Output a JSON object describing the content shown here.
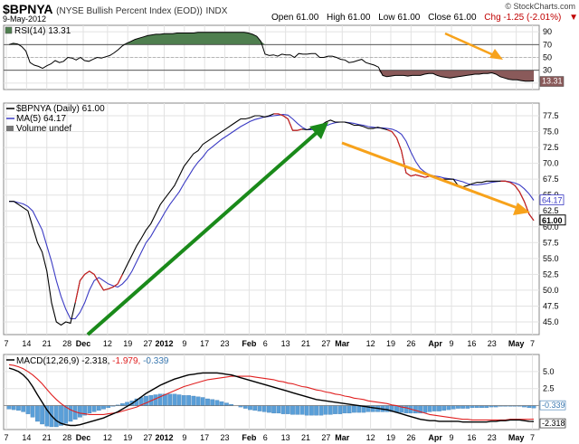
{
  "header": {
    "symbol": "$BPNYA",
    "name": "(NYSE Bullish Percent Index (EOD))",
    "exchange": "INDX",
    "date": "9-May-2012",
    "brand": "© StockCharts.com",
    "open": "Open 61.00",
    "high": "High 61.00",
    "low": "Low 61.00",
    "close": "Close 61.00",
    "chg": "Chg -1.25 (-2.01%)",
    "chg_arrow": "▼"
  },
  "colors": {
    "price": "#000000",
    "ma": "#3b3bc4",
    "rsi_fill_high": "#4f7f4f",
    "rsi_fill_low": "#8a5a5a",
    "macd": "#000000",
    "signal": "#e02020",
    "hist": "#5a9fd8",
    "arrow_green": "#1a8a1a",
    "arrow_orange": "#f7a21b"
  },
  "chart_data": [
    {
      "type": "line",
      "panel": "RSI",
      "legend": "RSI(14) 13.31",
      "last_label": "13.31",
      "ylim": [
        0,
        100
      ],
      "yticks": [
        "90",
        "70",
        "50",
        "30",
        "10"
      ],
      "ytick_values": [
        90,
        70,
        50,
        30,
        10
      ],
      "reference_lines": [
        70,
        30
      ],
      "x": [
        0,
        1,
        2,
        3,
        4,
        5,
        6,
        7,
        8,
        9,
        10,
        11,
        12,
        13,
        14,
        15,
        16,
        17,
        18,
        19,
        20,
        21,
        22,
        23,
        24,
        25,
        26,
        27,
        28,
        29,
        30,
        31,
        32,
        33,
        34,
        35,
        36,
        37,
        38,
        39,
        40,
        41,
        42,
        43,
        44,
        45,
        46,
        47,
        48,
        49,
        50,
        51,
        52,
        53,
        54,
        55,
        56,
        57,
        58,
        59,
        60,
        61,
        62,
        63,
        64,
        65,
        66,
        67,
        68,
        69,
        70,
        71,
        72,
        73,
        74,
        75,
        76,
        77,
        78,
        79,
        80,
        81,
        82,
        83,
        84,
        85,
        86,
        87,
        88,
        89,
        90,
        91,
        92,
        93,
        94,
        95,
        96,
        97,
        98,
        99,
        100,
        101,
        102,
        103,
        104,
        105,
        106,
        107,
        108,
        109,
        110,
        111,
        112,
        113,
        114,
        115,
        116,
        117,
        118,
        119,
        120,
        121,
        122,
        123,
        124,
        125
      ],
      "values": [
        70,
        72,
        71,
        67,
        60,
        42,
        38,
        36,
        33,
        37,
        40,
        45,
        42,
        44,
        50,
        49,
        46,
        50,
        45,
        44,
        47,
        50,
        49,
        51,
        53,
        57,
        62,
        68,
        72,
        75,
        78,
        80,
        82,
        84,
        85,
        86,
        86,
        87,
        87,
        87,
        88,
        88,
        88,
        88,
        88,
        89,
        89,
        89,
        89,
        89,
        89,
        89,
        89,
        89,
        89,
        89,
        89,
        88,
        86,
        83,
        75,
        55,
        53,
        54,
        52,
        55,
        54,
        54,
        50,
        56,
        55,
        55,
        56,
        56,
        50,
        50,
        52,
        52,
        50,
        47,
        46,
        42,
        43,
        45,
        47,
        42,
        40,
        38,
        35,
        22,
        20,
        21,
        22,
        22,
        22,
        21,
        22,
        22,
        22,
        24,
        25,
        25,
        22,
        20,
        19,
        18,
        19,
        20,
        21,
        22,
        23,
        24,
        24,
        25,
        25,
        26,
        24,
        20,
        18,
        16,
        15,
        15,
        14,
        13,
        13,
        13.31
      ]
    },
    {
      "type": "line",
      "panel": "Price",
      "legend_price": "$BPNYA (Daily) 61.00",
      "legend_ma": "MA(5) 64.17",
      "legend_vol": "Volume undef",
      "ylim": [
        43,
        79.5
      ],
      "yticks": [
        "77.5",
        "75.0",
        "72.5",
        "70.0",
        "67.5",
        "65.0",
        "62.5",
        "60.0",
        "57.5",
        "55.0",
        "52.5",
        "50.0",
        "47.5",
        "45.0"
      ],
      "ytick_values": [
        77.5,
        75,
        72.5,
        70,
        67.5,
        65,
        62.5,
        60,
        57.5,
        55,
        52.5,
        50,
        47.5,
        45
      ],
      "last_price_label": "61.00",
      "last_ma_label": "64.17",
      "series": [
        {
          "name": "$BPNYA (Daily) 61.00",
          "values": [
            64,
            64,
            63.5,
            63,
            62.5,
            60,
            57.5,
            56,
            53,
            48,
            45,
            44.5,
            45,
            44.8,
            48,
            51.5,
            52.5,
            53,
            52.5,
            51.2,
            50,
            50.2,
            50.5,
            51,
            52.5,
            54,
            55.5,
            57,
            58.2,
            59.5,
            60.5,
            62,
            63.5,
            64.5,
            65.5,
            66.5,
            68,
            69.5,
            70.5,
            71.5,
            72,
            73,
            73.5,
            74,
            74.5,
            75,
            75.5,
            76,
            76.5,
            77,
            77,
            77.2,
            77.5,
            77.5,
            77.3,
            77.5,
            77.8,
            77.8,
            77.5,
            77,
            75.2,
            75.2,
            75.4,
            75.3,
            75.5,
            75.5,
            76,
            76.5,
            76.8,
            76.5,
            76.5,
            76.5,
            76.3,
            76,
            76,
            75.8,
            75.5,
            75.5,
            75.7,
            75.5,
            75.3,
            75,
            74,
            72,
            68.5,
            68,
            68.2,
            68,
            67.8,
            68,
            68,
            67.5,
            67.5,
            67.5,
            67.5,
            66.5,
            66.3,
            66.5,
            66.8,
            67,
            67,
            67.2,
            67.2,
            67.2,
            67.2,
            67.2,
            67,
            66.5,
            65.5,
            64,
            62,
            61
          ]
        },
        {
          "name": "MA(5) 64.17",
          "values": [
            64,
            64,
            63.8,
            63.6,
            63.2,
            62.5,
            61,
            59.5,
            57,
            54.5,
            51.5,
            49,
            47,
            45.5,
            45.5,
            46.5,
            48,
            50,
            51.5,
            52,
            51.5,
            51,
            50.7,
            50.5,
            51,
            51.8,
            53,
            54.5,
            56,
            57.5,
            58.5,
            59.8,
            61,
            62.3,
            63.5,
            64.5,
            65.5,
            66.8,
            68,
            69.2,
            70.2,
            71,
            72,
            72.6,
            73.2,
            73.8,
            74.3,
            74.8,
            75.3,
            75.8,
            76.2,
            76.6,
            76.9,
            77.1,
            77.3,
            77.4,
            77.5,
            77.6,
            77.7,
            77.6,
            77,
            76.3,
            75.7,
            75.3,
            75.3,
            75.4,
            75.6,
            75.9,
            76.2,
            76.4,
            76.5,
            76.5,
            76.4,
            76.3,
            76.1,
            76,
            75.8,
            75.7,
            75.6,
            75.6,
            75.5,
            75.4,
            75.1,
            74.6,
            73.5,
            71.8,
            70.3,
            69.2,
            68.6,
            68.2,
            68,
            67.9,
            67.7,
            67.6,
            67.5,
            67.3,
            67.1,
            66.8,
            66.6,
            66.6,
            66.7,
            66.8,
            67,
            67.1,
            67.2,
            67.2,
            67.1,
            66.9,
            66.6,
            66,
            65.2,
            64.17
          ]
        }
      ]
    },
    {
      "type": "line",
      "panel": "MACD",
      "legend_prefix": "MACD(12,26,9)",
      "legend_macd": "-2.318",
      "legend_signal": "-1.979",
      "legend_hist": "-0.339",
      "ylim": [
        -3.5,
        7.5
      ],
      "yticks": [
        "5.0",
        "2.5",
        "0.0"
      ],
      "ytick_values": [
        5,
        2.5,
        0
      ],
      "last_hist_label": "-0.339",
      "last_macd_label": "-2.318",
      "series": [
        {
          "name": "MACD",
          "values": [
            5.5,
            5.3,
            5.0,
            4.5,
            3.8,
            2.8,
            1.6,
            0.5,
            -0.6,
            -1.5,
            -2.2,
            -2.6,
            -2.8,
            -2.9,
            -2.9,
            -2.8,
            -2.6,
            -2.4,
            -2.2,
            -2.0,
            -1.8,
            -1.5,
            -1.2,
            -0.9,
            -0.5,
            -0.1,
            0.3,
            0.8,
            1.3,
            1.8,
            2.2,
            2.6,
            3.0,
            3.3,
            3.6,
            3.9,
            4.1,
            4.3,
            4.5,
            4.6,
            4.7,
            4.8,
            4.8,
            4.8,
            4.8,
            4.7,
            4.6,
            4.5,
            4.3,
            4.1,
            3.9,
            3.7,
            3.5,
            3.3,
            3.1,
            2.9,
            2.7,
            2.5,
            2.3,
            2.1,
            1.9,
            1.7,
            1.5,
            1.3,
            1.1,
            0.9,
            0.8,
            0.7,
            0.6,
            0.5,
            0.4,
            0.3,
            0.2,
            0.1,
            0.0,
            -0.1,
            -0.2,
            -0.3,
            -0.4,
            -0.5,
            -0.6,
            -0.8,
            -1.0,
            -1.2,
            -1.4,
            -1.6,
            -1.8,
            -2.0,
            -2.1,
            -2.2,
            -2.2,
            -2.3,
            -2.3,
            -2.3,
            -2.3,
            -2.3,
            -2.4,
            -2.4,
            -2.4,
            -2.4,
            -2.4,
            -2.4,
            -2.3,
            -2.3,
            -2.2,
            -2.2,
            -2.1,
            -2.1,
            -2.1,
            -2.2,
            -2.3,
            -2.318
          ]
        },
        {
          "name": "Signal",
          "values": [
            6.0,
            5.9,
            5.7,
            5.4,
            5.0,
            4.5,
            3.9,
            3.2,
            2.4,
            1.6,
            0.9,
            0.3,
            -0.2,
            -0.6,
            -0.9,
            -1.1,
            -1.2,
            -1.3,
            -1.3,
            -1.3,
            -1.3,
            -1.2,
            -1.1,
            -1.0,
            -0.8,
            -0.6,
            -0.4,
            -0.2,
            0.1,
            0.4,
            0.7,
            1.0,
            1.3,
            1.6,
            1.9,
            2.2,
            2.5,
            2.8,
            3.0,
            3.2,
            3.4,
            3.6,
            3.8,
            3.9,
            4.0,
            4.1,
            4.2,
            4.3,
            4.3,
            4.3,
            4.3,
            4.3,
            4.2,
            4.1,
            4.0,
            3.9,
            3.8,
            3.6,
            3.5,
            3.3,
            3.2,
            3.0,
            2.8,
            2.7,
            2.5,
            2.3,
            2.2,
            2.0,
            1.9,
            1.7,
            1.6,
            1.4,
            1.3,
            1.1,
            1.0,
            0.9,
            0.7,
            0.6,
            0.5,
            0.4,
            0.3,
            0.1,
            0.0,
            -0.2,
            -0.3,
            -0.5,
            -0.7,
            -0.9,
            -1.1,
            -1.3,
            -1.4,
            -1.5,
            -1.6,
            -1.7,
            -1.8,
            -1.9,
            -2.0,
            -2.0,
            -2.1,
            -2.1,
            -2.1,
            -2.1,
            -2.1,
            -2.1,
            -2.1,
            -2.1,
            -2.0,
            -2.0,
            -2.0,
            -2.0,
            -2.0,
            -1.979
          ]
        }
      ],
      "histogram": {
        "name": "Histogram",
        "values": [
          -0.5,
          -0.6,
          -0.7,
          -0.9,
          -1.2,
          -1.7,
          -2.3,
          -2.7,
          -3.0,
          -3.1,
          -3.1,
          -2.9,
          -2.6,
          -2.3,
          -2.0,
          -1.7,
          -1.4,
          -1.1,
          -0.9,
          -0.7,
          -0.5,
          -0.3,
          -0.1,
          0.1,
          0.3,
          0.5,
          0.7,
          1.0,
          1.2,
          1.4,
          1.5,
          1.6,
          1.7,
          1.7,
          1.7,
          1.7,
          1.6,
          1.5,
          1.5,
          1.4,
          1.3,
          1.2,
          1.0,
          0.9,
          0.8,
          0.6,
          0.4,
          0.2,
          0.0,
          -0.2,
          -0.4,
          -0.6,
          -0.7,
          -0.8,
          -0.9,
          -1.0,
          -1.1,
          -1.1,
          -1.2,
          -1.2,
          -1.3,
          -1.3,
          -1.3,
          -1.4,
          -1.4,
          -1.4,
          -1.4,
          -1.3,
          -1.3,
          -1.2,
          -1.2,
          -1.1,
          -1.1,
          -1.0,
          -1.0,
          -1.0,
          -0.9,
          -0.9,
          -0.9,
          -0.9,
          -0.9,
          -0.9,
          -1.0,
          -1.0,
          -1.1,
          -1.1,
          -1.1,
          -1.1,
          -1.0,
          -0.9,
          -0.8,
          -0.8,
          -0.7,
          -0.6,
          -0.5,
          -0.4,
          -0.4,
          -0.4,
          -0.3,
          -0.3,
          -0.3,
          -0.3,
          -0.2,
          -0.2,
          -0.1,
          -0.1,
          -0.1,
          -0.1,
          -0.1,
          -0.2,
          -0.3,
          -0.339
        ]
      }
    }
  ],
  "x_axis": {
    "labels": [
      {
        "t": "7",
        "i": 0,
        "bold": false
      },
      {
        "t": "14",
        "i": 5,
        "bold": false
      },
      {
        "t": "21",
        "i": 10,
        "bold": false
      },
      {
        "t": "28",
        "i": 15,
        "bold": false
      },
      {
        "t": "Dec",
        "i": 19,
        "bold": true
      },
      {
        "t": "12",
        "i": 25,
        "bold": false
      },
      {
        "t": "19",
        "i": 30,
        "bold": false
      },
      {
        "t": "27",
        "i": 35,
        "bold": false
      },
      {
        "t": "2012",
        "i": 39,
        "bold": true
      },
      {
        "t": "9",
        "i": 44,
        "bold": false
      },
      {
        "t": "17",
        "i": 49,
        "bold": false
      },
      {
        "t": "23",
        "i": 54,
        "bold": false
      },
      {
        "t": "Feb",
        "i": 60,
        "bold": true
      },
      {
        "t": "6",
        "i": 64,
        "bold": false
      },
      {
        "t": "13",
        "i": 69,
        "bold": false
      },
      {
        "t": "21",
        "i": 74,
        "bold": false
      },
      {
        "t": "27",
        "i": 79,
        "bold": false
      },
      {
        "t": "Mar",
        "i": 83,
        "bold": true
      },
      {
        "t": "12",
        "i": 90,
        "bold": false
      },
      {
        "t": "19",
        "i": 95,
        "bold": false
      },
      {
        "t": "26",
        "i": 100,
        "bold": false
      },
      {
        "t": "Apr",
        "i": 106,
        "bold": true
      },
      {
        "t": "9",
        "i": 110,
        "bold": false
      },
      {
        "t": "16",
        "i": 115,
        "bold": false
      },
      {
        "t": "23",
        "i": 120,
        "bold": false
      },
      {
        "t": "May",
        "i": 126,
        "bold": true
      },
      {
        "t": "7",
        "i": 130,
        "bold": false
      }
    ]
  }
}
